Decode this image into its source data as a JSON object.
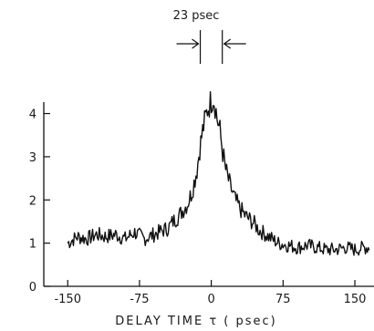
{
  "chart_data": {
    "type": "line",
    "title": "",
    "xlabel": "DELAY TIME τ ( psec)",
    "ylabel": "",
    "xlim": [
      -175,
      170
    ],
    "ylim": [
      0,
      4.75
    ],
    "x_ticks": [
      -150,
      -75,
      0,
      75,
      150
    ],
    "y_ticks": [
      0,
      1,
      2,
      3,
      4
    ],
    "x_tick_labels": [
      "-150",
      "-75",
      "0",
      "75",
      "150"
    ],
    "y_tick_labels": [
      "0",
      "1",
      "2",
      "3",
      "4"
    ],
    "grid": false,
    "line_color": "#111111",
    "annotation": {
      "text": "23 psec",
      "x_from": -11.5,
      "x_to": 11.5
    },
    "series": [
      {
        "x": [
          -150,
          -140,
          -130,
          -120,
          -110,
          -100,
          -90,
          -80,
          -70,
          -60,
          -50,
          -45,
          -40,
          -35,
          -30,
          -25,
          -20,
          -15,
          -12,
          -9,
          -6,
          -4,
          -2,
          0,
          2,
          4,
          6,
          9,
          12,
          15,
          20,
          25,
          30,
          35,
          40,
          45,
          50,
          60,
          70,
          80,
          90,
          100,
          110,
          120,
          130,
          140,
          150,
          160,
          165
        ],
        "y": [
          1.0,
          1.15,
          1.1,
          1.2,
          1.15,
          1.2,
          1.1,
          1.25,
          1.1,
          1.2,
          1.3,
          1.35,
          1.5,
          1.6,
          1.75,
          1.9,
          2.2,
          2.7,
          3.2,
          3.6,
          3.9,
          4.1,
          4.2,
          4.3,
          4.4,
          4.2,
          3.9,
          3.6,
          3.1,
          2.7,
          2.3,
          2.0,
          1.8,
          1.65,
          1.55,
          1.45,
          1.3,
          1.15,
          1.0,
          0.95,
          0.9,
          0.95,
          0.9,
          0.85,
          0.85,
          0.9,
          0.85,
          0.9,
          0.9
        ]
      }
    ]
  }
}
